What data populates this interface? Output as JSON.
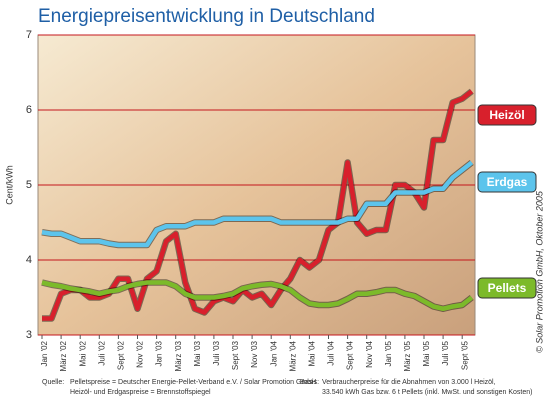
{
  "chart_data": {
    "type": "line",
    "title": "Energiepreisentwicklung in Deutschland",
    "ylabel": "Cent/kWh",
    "categories": [
      "Jan '02",
      null,
      "März '02",
      null,
      "Mai '02",
      null,
      "Juli '02",
      null,
      "Sept '02",
      null,
      "Nov '02",
      null,
      "Jan '03",
      null,
      "März '03",
      null,
      "Mai '03",
      null,
      "Juli '03",
      null,
      "Sept '03",
      null,
      "Nov '03",
      null,
      "Jan '04",
      null,
      "März '04",
      null,
      "Mai '04",
      null,
      "Juli '04",
      null,
      "Sept '04",
      null,
      "Nov '04",
      null,
      "Jan '05",
      null,
      "März '05",
      null,
      "Mai '05",
      null,
      "Juli '05",
      null,
      "Sept '05",
      null
    ],
    "series": [
      {
        "name": "Heizöl",
        "color": "#d8202c",
        "values": [
          3.22,
          3.22,
          3.55,
          3.6,
          3.6,
          3.5,
          3.5,
          3.55,
          3.75,
          3.75,
          3.35,
          3.75,
          3.85,
          4.25,
          4.35,
          3.7,
          3.35,
          3.3,
          3.45,
          3.5,
          3.45,
          3.6,
          3.5,
          3.55,
          3.4,
          3.6,
          3.75,
          4.0,
          3.9,
          4.0,
          4.4,
          4.5,
          5.3,
          4.5,
          4.35,
          4.4,
          4.4,
          5.0,
          5.0,
          4.9,
          4.7,
          5.6,
          5.6,
          6.1,
          6.15,
          6.25
        ]
      },
      {
        "name": "Erdgas",
        "color": "#5cc4ec",
        "values": [
          4.37,
          4.35,
          4.35,
          4.3,
          4.25,
          4.25,
          4.25,
          4.22,
          4.2,
          4.2,
          4.2,
          4.2,
          4.4,
          4.45,
          4.45,
          4.45,
          4.5,
          4.5,
          4.5,
          4.55,
          4.55,
          4.55,
          4.55,
          4.55,
          4.55,
          4.5,
          4.5,
          4.5,
          4.5,
          4.5,
          4.5,
          4.5,
          4.55,
          4.55,
          4.75,
          4.75,
          4.75,
          4.9,
          4.9,
          4.9,
          4.9,
          4.95,
          4.95,
          5.1,
          5.2,
          5.3
        ]
      },
      {
        "name": "Pellets",
        "color": "#7cba2a",
        "values": [
          3.7,
          3.67,
          3.65,
          3.62,
          3.6,
          3.58,
          3.55,
          3.58,
          3.6,
          3.65,
          3.68,
          3.7,
          3.7,
          3.7,
          3.65,
          3.55,
          3.5,
          3.5,
          3.5,
          3.52,
          3.55,
          3.62,
          3.65,
          3.67,
          3.68,
          3.65,
          3.6,
          3.5,
          3.42,
          3.4,
          3.4,
          3.42,
          3.48,
          3.55,
          3.55,
          3.57,
          3.6,
          3.6,
          3.55,
          3.52,
          3.45,
          3.38,
          3.35,
          3.38,
          3.4,
          3.5
        ]
      }
    ],
    "ylim": [
      3,
      7
    ],
    "yticks": [
      3,
      4,
      5,
      6,
      7
    ],
    "grid": true,
    "notes": {
      "source_label": "Quelle:",
      "source_lines": [
        "Pelletspreise = Deutscher Energie-Pellet-Verband e.V. / Solar Promotion GmbH",
        "Heizöl- und Erdgaspreise = Brennstoffspiegel"
      ],
      "basis_label": "Basis:",
      "basis_lines": [
        "Verbraucherpreise für die Abnahmen von 3.000 l Heizöl,",
        "33.540 kWh Gas bzw. 6 t Pellets (inkl. MwSt. und sonstigen Kosten)"
      ],
      "copyright": "© Solar Promotion GmbH, Oktober 2005"
    }
  }
}
